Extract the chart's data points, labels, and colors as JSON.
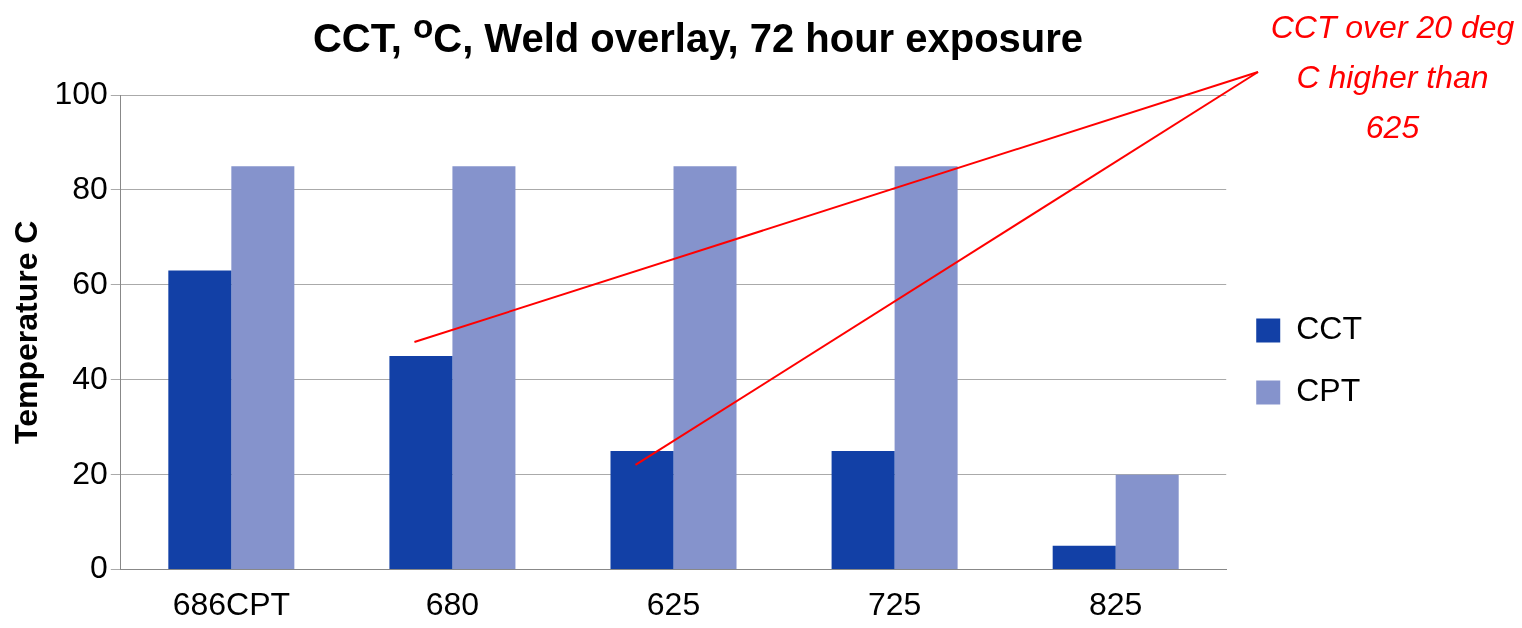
{
  "chart_data": {
    "type": "bar",
    "title": "CCT, $^{o}$C, Weld overlay, 72 hour exposure",
    "ylabel": "Temperature C",
    "categories": [
      "686CPT",
      "680",
      "625",
      "725",
      "825"
    ],
    "series": [
      {
        "name": "CCT",
        "color": "#1240a6",
        "values": [
          63,
          45,
          25,
          25,
          5
        ]
      },
      {
        "name": "CPT",
        "color": "#8593cc",
        "values": [
          85,
          85,
          85,
          85,
          20
        ]
      }
    ],
    "ylim": [
      0,
      100
    ],
    "yticks": [
      0,
      20,
      40,
      60,
      80,
      100
    ],
    "grid": "y",
    "legend": "right",
    "annotations": [
      "CCT over 20 deg C higher than 625"
    ]
  }
}
